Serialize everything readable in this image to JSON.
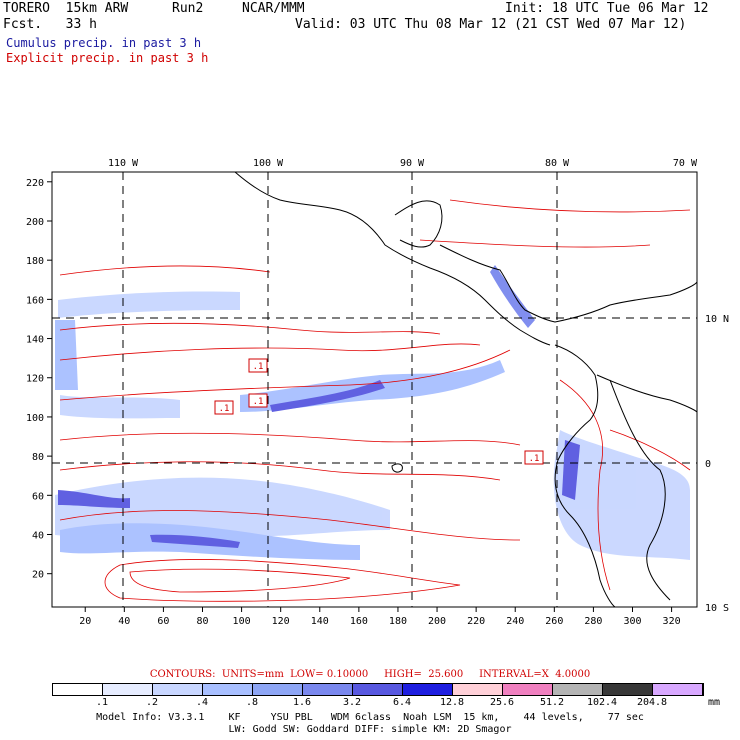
{
  "header": {
    "model": "TORERO  15km ARW",
    "run": "Run2",
    "org": "NCAR/MMM",
    "init": "Init: 18 UTC Tue 06 Mar 12",
    "fcst": "Fcst.   33 h",
    "valid": "Valid: 03 UTC Thu 08 Mar 12 (21 CST Wed 07 Mar 12)",
    "line_cumulus": "Cumulus precip. in past 3 h",
    "line_explicit": "Explicit precip. in past 3 h"
  },
  "map": {
    "lon_labels": [
      "110 W",
      "100 W",
      "90 W",
      "80 W",
      "70 W"
    ],
    "lat_labels": [
      "10 N",
      "0",
      "10 S"
    ],
    "x_ticks": [
      "20",
      "40",
      "60",
      "80",
      "100",
      "120",
      "140",
      "160",
      "180",
      "200",
      "220",
      "240",
      "260",
      "280",
      "300",
      "320"
    ],
    "y_ticks": [
      "20",
      "40",
      "60",
      "80",
      "100",
      "120",
      "140",
      "160",
      "180",
      "200",
      "220"
    ],
    "contour_labels": [
      ".1",
      ".1",
      ".1",
      ".1"
    ]
  },
  "contours_line": "CONTOURS:  UNITS=mm  LOW= 0.10000     HIGH=  25.600     INTERVAL=X  4.0000",
  "colorbar": {
    "labels": [
      ".1",
      ".2",
      ".4",
      ".8",
      "1.6",
      "3.2",
      "6.4",
      "12.8",
      "25.6",
      "51.2",
      "102.4",
      "204.8"
    ],
    "unit": "mm",
    "colors": [
      "#ffffff",
      "#e6ecff",
      "#c8d6ff",
      "#a8bfff",
      "#8ea6f5",
      "#7a88ee",
      "#5858e0",
      "#1e1ee0",
      "#ffd0d8",
      "#f080c0",
      "#b4b4b4",
      "#383838",
      "#d8a8ff"
    ]
  },
  "footer": {
    "line1": "Model Info: V3.3.1    KF     YSU PBL   WDM 6class  Noah LSM  15 km,    44 levels,    77 sec",
    "line2": "LW: Godd SW: Goddard DIFF: simple KM: 2D Smagor"
  }
}
